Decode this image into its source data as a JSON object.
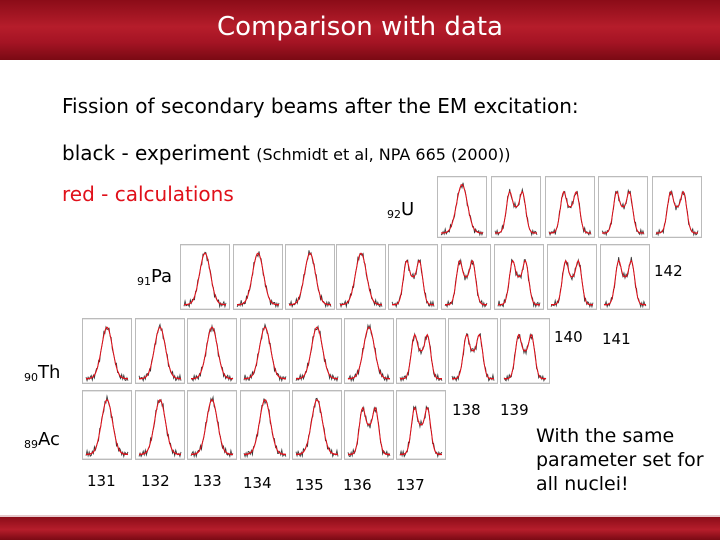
{
  "slide": {
    "title": "Comparison with data",
    "line1": "Fission of secondary beams after the EM excitation:",
    "line2_main": "black - experiment ",
    "line2_ref": "(Schmidt et al, NPA 665 (2000))",
    "line3": "red - calculations",
    "note": "With the same parameter set for all nuclei!"
  },
  "elements": {
    "U": {
      "z": "92",
      "sym": "U"
    },
    "Pa": {
      "z": "91",
      "sym": "Pa"
    },
    "Th": {
      "z": "90",
      "sym": "Th"
    },
    "Ac": {
      "z": "89",
      "sym": "Ac"
    }
  },
  "mass_labels": {
    "m142": "142",
    "m140": "140",
    "m141": "141",
    "m138": "138",
    "m139": "139",
    "m131": "131",
    "m132": "132",
    "m133": "133",
    "m134": "134",
    "m135": "135",
    "m136": "136",
    "m137": "137"
  },
  "colors": {
    "title_bar": "#a51424",
    "calc_line": "#e0101a",
    "exp_line": "#333333",
    "frame": "#bbbbbb"
  }
}
